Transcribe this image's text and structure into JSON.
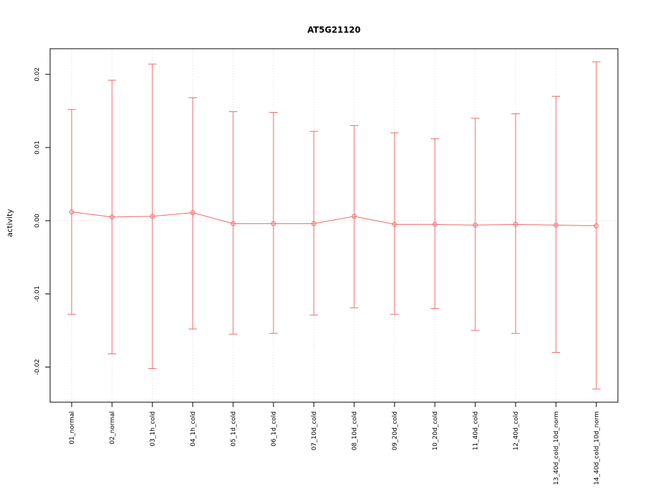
{
  "chart_data": {
    "type": "scatter",
    "title": "AT5G21120",
    "xlabel": "",
    "ylabel": "activity",
    "ylim": [
      -0.0248,
      0.0235
    ],
    "y_ticks": [
      -0.02,
      -0.01,
      0,
      0.01,
      0.02
    ],
    "y_tick_labels": [
      "-0.02",
      "-0.01",
      "0.00",
      "0.01",
      "0.02"
    ],
    "legend": "none",
    "grid": "dotted vertical line at each category; dotted horizontal line at y=0",
    "series_name": "activity with error bars",
    "series_color": "#f26666",
    "grid_color": "#d8d8d8",
    "axis_color": "#000000",
    "categories": [
      "01_normal",
      "02_normal",
      "03_1h_cold",
      "04_1h_cold",
      "05_1d_cold",
      "06_1d_cold",
      "07_10d_cold",
      "08_10d_cold",
      "09_20d_cold",
      "10_20d_cold",
      "11_40d_cold",
      "12_40d_cold",
      "13_40d_cold_10d_norm",
      "14_40d_cold_10d_norm"
    ],
    "points": [
      {
        "label": "01_normal",
        "value": 0.0012,
        "upper": 0.0152,
        "lower": -0.0128
      },
      {
        "label": "02_normal",
        "value": 0.0005,
        "upper": 0.0192,
        "lower": -0.0182
      },
      {
        "label": "03_1h_cold",
        "value": 0.0006,
        "upper": 0.0214,
        "lower": -0.0202
      },
      {
        "label": "04_1h_cold",
        "value": 0.0011,
        "upper": 0.0168,
        "lower": -0.0148
      },
      {
        "label": "05_1d_cold",
        "value": -0.0004,
        "upper": 0.0149,
        "lower": -0.0155
      },
      {
        "label": "06_1d_cold",
        "value": -0.0004,
        "upper": 0.0148,
        "lower": -0.0154
      },
      {
        "label": "07_10d_cold",
        "value": -0.0004,
        "upper": 0.0122,
        "lower": -0.0129
      },
      {
        "label": "08_10d_cold",
        "value": 0.0006,
        "upper": 0.013,
        "lower": -0.0119
      },
      {
        "label": "09_20d_cold",
        "value": -0.0005,
        "upper": 0.012,
        "lower": -0.0128
      },
      {
        "label": "10_20d_cold",
        "value": -0.0005,
        "upper": 0.0112,
        "lower": -0.012
      },
      {
        "label": "11_40d_cold",
        "value": -0.0006,
        "upper": 0.014,
        "lower": -0.015
      },
      {
        "label": "12_40d_cold",
        "value": -0.0005,
        "upper": 0.0146,
        "lower": -0.0154
      },
      {
        "label": "13_40d_cold_10d_norm",
        "value": -0.0006,
        "upper": 0.017,
        "lower": -0.018
      },
      {
        "label": "14_40d_cold_10d_norm",
        "value": -0.0007,
        "upper": 0.0217,
        "lower": -0.023
      }
    ]
  }
}
